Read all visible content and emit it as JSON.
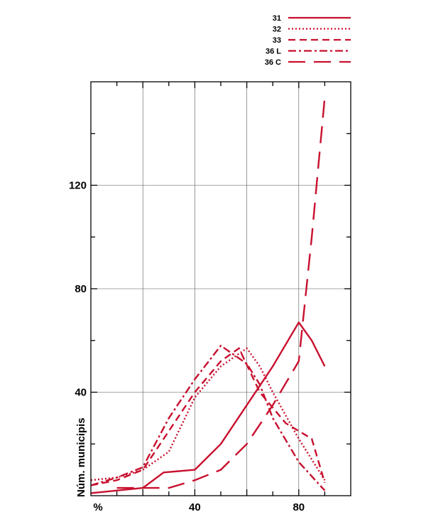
{
  "chart_data": {
    "type": "line",
    "title": "",
    "xlabel": "%",
    "ylabel": "Núm. municipis",
    "xlim": [
      0,
      100
    ],
    "ylim": [
      0,
      160
    ],
    "x_ticks": [
      40,
      80
    ],
    "y_ticks": [
      40,
      80,
      120
    ],
    "grid": true,
    "legend_position": "top-right",
    "line_color": "#c8102e",
    "series": [
      {
        "name": "31",
        "style": "solid",
        "x": [
          0,
          20,
          28,
          40,
          50,
          60,
          70,
          80,
          85,
          90
        ],
        "y": [
          1,
          3,
          9,
          10,
          20,
          35,
          50,
          67,
          60,
          50
        ]
      },
      {
        "name": "32",
        "style": "dotted",
        "x": [
          0,
          10,
          20,
          30,
          40,
          50,
          60,
          65,
          70,
          80,
          90
        ],
        "y": [
          6,
          7,
          10,
          17,
          38,
          50,
          57,
          50,
          40,
          22,
          6
        ]
      },
      {
        "name": "33",
        "style": "dashed",
        "x": [
          0,
          10,
          20,
          30,
          40,
          50,
          57,
          65,
          75,
          85,
          90
        ],
        "y": [
          4,
          6,
          10,
          25,
          40,
          52,
          57,
          40,
          28,
          22,
          5
        ]
      },
      {
        "name": "36 L",
        "style": "dashdot",
        "x": [
          0,
          10,
          20,
          30,
          40,
          50,
          60,
          65,
          70,
          80,
          90
        ],
        "y": [
          4,
          7,
          11,
          30,
          45,
          58,
          51,
          43,
          30,
          13,
          2
        ]
      },
      {
        "name": "36 C",
        "style": "longdash",
        "x": [
          10,
          20,
          30,
          40,
          50,
          60,
          70,
          80,
          85,
          90
        ],
        "y": [
          3,
          3,
          3,
          6,
          10,
          20,
          35,
          52,
          100,
          154
        ]
      }
    ]
  }
}
